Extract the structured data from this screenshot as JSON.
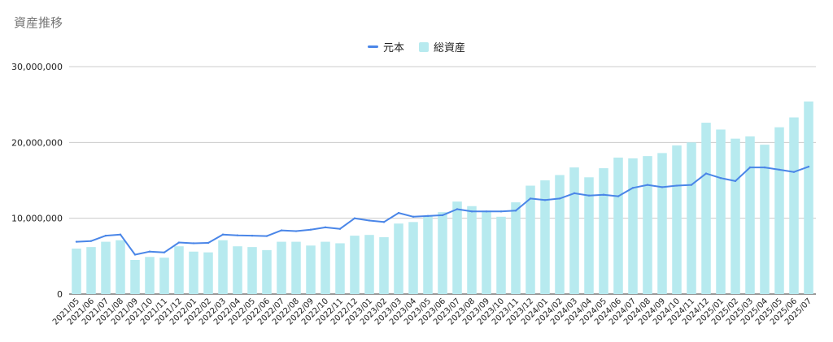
{
  "title": "資産推移",
  "chart_data": {
    "type": "bar",
    "title": "資産推移",
    "xlabel": "",
    "ylabel": "",
    "ylim": [
      0,
      30000000
    ],
    "yticks": [
      0,
      10000000,
      20000000,
      30000000
    ],
    "ytick_labels": [
      "0",
      "10,000,000",
      "20,000,000",
      "30,000,000"
    ],
    "grid": true,
    "legend_placement": "top-center",
    "categories": [
      "2021/05",
      "2021/06",
      "2021/07",
      "2021/08",
      "2021/09",
      "2021/10",
      "2021/11",
      "2021/12",
      "2022/01",
      "2022/02",
      "2022/03",
      "2022/04",
      "2022/05",
      "2022/06",
      "2022/07",
      "2022/08",
      "2022/09",
      "2022/10",
      "2022/11",
      "2022/12",
      "2023/01",
      "2023/02",
      "2023/03",
      "2023/04",
      "2023/05",
      "2023/06",
      "2023/07",
      "2023/08",
      "2023/09",
      "2023/10",
      "2023/11",
      "2023/12",
      "2024/01",
      "2024/02",
      "2024/03",
      "2024/04",
      "2024/05",
      "2024/06",
      "2024/07",
      "2024/08",
      "2024/09",
      "2024/10",
      "2024/11",
      "2024/12",
      "2025/01",
      "2025/02",
      "2025/03",
      "2025/04",
      "2025/05",
      "2025/06",
      "2025/07"
    ],
    "series": [
      {
        "name": "元本",
        "type": "line",
        "color": "#4a86e8",
        "values": [
          6900000,
          7000000,
          7700000,
          7850000,
          5200000,
          5600000,
          5500000,
          6800000,
          6700000,
          6750000,
          7850000,
          7750000,
          7700000,
          7650000,
          8400000,
          8300000,
          8500000,
          8800000,
          8600000,
          10000000,
          9700000,
          9500000,
          10700000,
          10200000,
          10300000,
          10400000,
          11200000,
          10900000,
          10900000,
          10900000,
          11000000,
          12600000,
          12400000,
          12600000,
          13300000,
          13000000,
          13100000,
          12900000,
          14000000,
          14400000,
          14100000,
          14300000,
          14400000,
          15900000,
          15300000,
          14900000,
          16700000,
          16700000,
          16400000,
          16100000,
          16800000
        ]
      },
      {
        "name": "総資産",
        "type": "bar",
        "color": "#b7eaef",
        "values": [
          6000000,
          6200000,
          6900000,
          7100000,
          4500000,
          4900000,
          4800000,
          6300000,
          5600000,
          5500000,
          7100000,
          6300000,
          6200000,
          5800000,
          6900000,
          6900000,
          6400000,
          6900000,
          6700000,
          7700000,
          7800000,
          7500000,
          9300000,
          9500000,
          10300000,
          10800000,
          12200000,
          11600000,
          11000000,
          10200000,
          12100000,
          14300000,
          15000000,
          15700000,
          16700000,
          15400000,
          16600000,
          18000000,
          17900000,
          18200000,
          18600000,
          19600000,
          20000000,
          22600000,
          21700000,
          20500000,
          20800000,
          19700000,
          22000000,
          23300000,
          25400000
        ]
      }
    ]
  }
}
